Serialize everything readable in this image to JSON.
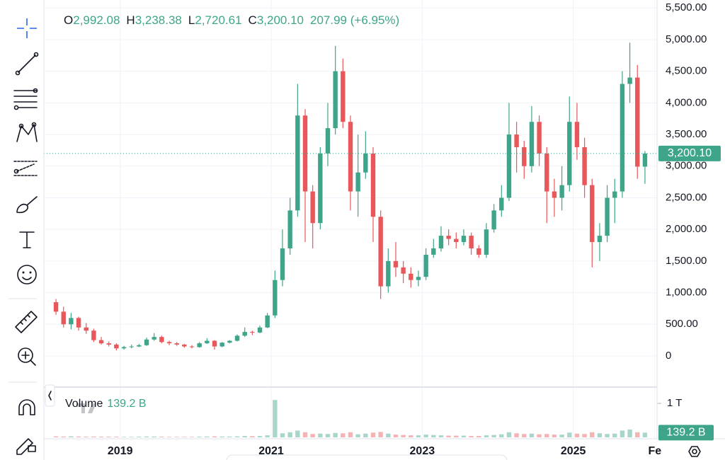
{
  "chart_data": {
    "type": "candlestick",
    "x": [
      2018.15,
      2018.25,
      2018.35,
      2018.45,
      2018.55,
      2018.65,
      2018.75,
      2018.85,
      2018.95,
      2019.05,
      2019.15,
      2019.25,
      2019.35,
      2019.45,
      2019.55,
      2019.65,
      2019.75,
      2019.85,
      2019.95,
      2020.05,
      2020.15,
      2020.25,
      2020.35,
      2020.45,
      2020.55,
      2020.65,
      2020.75,
      2020.85,
      2020.95,
      2021.05,
      2021.15,
      2021.25,
      2021.35,
      2021.45,
      2021.55,
      2021.65,
      2021.75,
      2021.85,
      2021.95,
      2022.05,
      2022.15,
      2022.25,
      2022.35,
      2022.45,
      2022.55,
      2022.65,
      2022.75,
      2022.85,
      2022.95,
      2023.05,
      2023.15,
      2023.25,
      2023.35,
      2023.45,
      2023.55,
      2023.65,
      2023.75,
      2023.85,
      2023.95,
      2024.05,
      2024.15,
      2024.25,
      2024.35,
      2024.45,
      2024.55,
      2024.65,
      2024.75,
      2024.85,
      2024.95,
      2025.05,
      2025.15,
      2025.25,
      2025.35,
      2025.45,
      2025.55,
      2025.65,
      2025.75,
      2025.85,
      2025.95
    ],
    "open": [
      850,
      700,
      500,
      600,
      450,
      400,
      250,
      200,
      180,
      120,
      140,
      150,
      170,
      260,
      300,
      220,
      200,
      180,
      150,
      140,
      200,
      240,
      150,
      210,
      240,
      320,
      380,
      370,
      450,
      640,
      1200,
      1700,
      2300,
      3800,
      2600,
      2100,
      3200,
      3600,
      4500,
      3700,
      2600,
      2900,
      3200,
      2200,
      1100,
      1500,
      1400,
      1300,
      1200,
      1250,
      1600,
      1700,
      1900,
      1850,
      1800,
      1900,
      1700,
      1600,
      2000,
      2300,
      2500,
      3500,
      3300,
      3000,
      3700,
      3200,
      2600,
      2500,
      2700,
      3700,
      3300,
      2700,
      1800,
      1900,
      2500,
      2600,
      4300,
      4400,
      2992.08
    ],
    "high": [
      900,
      780,
      680,
      620,
      520,
      430,
      300,
      230,
      200,
      160,
      180,
      190,
      290,
      360,
      320,
      240,
      220,
      190,
      170,
      220,
      280,
      250,
      220,
      250,
      340,
      450,
      400,
      480,
      680,
      1350,
      2000,
      2500,
      4300,
      3900,
      2700,
      3300,
      4000,
      4900,
      4700,
      3800,
      3500,
      3550,
      3300,
      2300,
      1700,
      1800,
      1500,
      1400,
      1350,
      1700,
      1850,
      2050,
      2000,
      1950,
      2000,
      1950,
      1750,
      2100,
      2400,
      2700,
      4000,
      3700,
      3400,
      3950,
      3800,
      3300,
      2800,
      3000,
      4100,
      4000,
      3450,
      2800,
      2100,
      2700,
      2800,
      4500,
      4950,
      4600,
      3238.38
    ],
    "low": [
      650,
      450,
      420,
      400,
      350,
      220,
      180,
      150,
      90,
      100,
      120,
      140,
      160,
      240,
      200,
      170,
      160,
      130,
      120,
      130,
      190,
      100,
      140,
      200,
      230,
      300,
      330,
      360,
      440,
      600,
      1100,
      1600,
      2200,
      1800,
      1700,
      2000,
      3000,
      3500,
      3600,
      2300,
      2200,
      2800,
      1800,
      900,
      1000,
      1250,
      1150,
      1080,
      1100,
      1200,
      1550,
      1650,
      1750,
      1700,
      1750,
      1600,
      1550,
      1550,
      1950,
      2200,
      2450,
      2900,
      2800,
      2900,
      3000,
      2100,
      2200,
      2300,
      2600,
      3100,
      2500,
      1400,
      1500,
      1800,
      2100,
      2500,
      4000,
      2800,
      2720.61
    ],
    "close": [
      700,
      500,
      600,
      450,
      400,
      250,
      200,
      180,
      120,
      140,
      150,
      170,
      260,
      300,
      220,
      200,
      180,
      150,
      140,
      200,
      240,
      150,
      210,
      240,
      320,
      380,
      370,
      450,
      640,
      1200,
      1700,
      2300,
      3800,
      2600,
      2100,
      3200,
      3600,
      4500,
      3700,
      2600,
      2900,
      3200,
      2200,
      1100,
      1500,
      1400,
      1300,
      1200,
      1250,
      1600,
      1700,
      1900,
      1850,
      1800,
      1900,
      1700,
      1600,
      2000,
      2300,
      2500,
      3500,
      3300,
      3000,
      3700,
      3200,
      2600,
      2500,
      2700,
      3700,
      3300,
      2700,
      1800,
      1900,
      2500,
      2600,
      4300,
      4400,
      2992.11,
      3200.1
    ],
    "up_color": "#3fa58a",
    "down_color": "#e8575a",
    "xlim": [
      2017.99,
      2026.11
    ],
    "xticks": [
      2019,
      2021,
      2023,
      2025,
      {
        "value": 2026.08,
        "label": "Fe"
      }
    ],
    "ylim": [
      -470,
      5626
    ],
    "yticks": [
      0,
      {
        "value": 500,
        "label": "500.00"
      },
      {
        "value": 1000,
        "label": "1,000.00"
      },
      {
        "value": 1500,
        "label": "1,500.00"
      },
      {
        "value": 2000,
        "label": "2,000.00"
      },
      {
        "value": 2500,
        "label": "2,500.00"
      },
      {
        "value": 3000,
        "label": "3,000.00"
      },
      {
        "value": 3500,
        "label": "3,500.00"
      },
      {
        "value": 4000,
        "label": "4,000.00"
      },
      {
        "value": 4500,
        "label": "4,500.00"
      },
      {
        "value": 5000,
        "label": "5,000.00"
      },
      {
        "value": 5500,
        "label": "5,500.00"
      }
    ],
    "grid": true,
    "last_price": {
      "value": 3200.1,
      "label": "3,200.10"
    },
    "legend": [
      {
        "key": "O",
        "value": "2,992.08"
      },
      {
        "key": "H",
        "value": "3,238.38"
      },
      {
        "key": "L",
        "value": "2,720.61"
      },
      {
        "key": "C",
        "value": "3,200.10"
      }
    ],
    "change_label": "207.99 (+6.95%)",
    "volume": {
      "title": "Volume",
      "values": [
        30,
        25,
        30,
        25,
        20,
        25,
        20,
        20,
        20,
        15,
        15,
        20,
        25,
        25,
        20,
        15,
        15,
        15,
        15,
        20,
        25,
        30,
        25,
        25,
        30,
        40,
        35,
        40,
        60,
        1100,
        120,
        150,
        200,
        150,
        100,
        110,
        100,
        130,
        120,
        150,
        90,
        110,
        140,
        160,
        110,
        80,
        70,
        60,
        60,
        80,
        70,
        60,
        50,
        50,
        50,
        40,
        40,
        60,
        70,
        90,
        150,
        120,
        100,
        110,
        90,
        100,
        80,
        80,
        140,
        110,
        100,
        150,
        120,
        100,
        110,
        200,
        230,
        150,
        139.2
      ],
      "last_label": "139.2 B",
      "ylim": [
        0,
        1458
      ],
      "yticks": [
        {
          "value": 1000,
          "label": "1 T"
        }
      ]
    }
  }
}
